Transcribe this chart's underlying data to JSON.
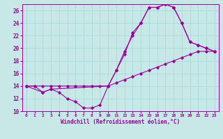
{
  "xlabel": "Windchill (Refroidissement éolien,°C)",
  "background_color": "#c8e8e8",
  "grid_color": "#a8d8d8",
  "line_color": "#990099",
  "xlim": [
    -0.5,
    23.5
  ],
  "ylim": [
    10,
    27
  ],
  "xticks": [
    0,
    1,
    2,
    3,
    4,
    5,
    6,
    7,
    8,
    9,
    10,
    11,
    12,
    13,
    14,
    15,
    16,
    17,
    18,
    19,
    20,
    21,
    22,
    23
  ],
  "yticks": [
    10,
    12,
    14,
    16,
    18,
    20,
    22,
    24,
    26
  ],
  "series": [
    {
      "x": [
        0,
        1,
        2,
        3,
        4,
        5,
        6,
        7,
        8,
        9,
        10,
        11,
        12,
        13,
        14,
        15,
        16,
        17,
        18,
        19,
        20,
        21,
        22,
        23
      ],
      "y": [
        14,
        14,
        13,
        13.5,
        13,
        12,
        11.5,
        10.5,
        10.5,
        11,
        14,
        16.5,
        19,
        22.5,
        24,
        26.5,
        26.5,
        27,
        26.5,
        24,
        21,
        20.5,
        20,
        19.5
      ]
    },
    {
      "x": [
        0,
        1,
        2,
        3,
        4,
        5,
        6,
        7,
        8,
        9,
        10,
        11,
        12,
        13,
        14,
        15,
        16,
        17,
        18,
        19,
        20,
        21,
        22,
        23
      ],
      "y": [
        14,
        14,
        14,
        14,
        14,
        14,
        14,
        14,
        14,
        14,
        14,
        14.5,
        15,
        15.5,
        16,
        16.5,
        17,
        17.5,
        18,
        18.5,
        19,
        19.5,
        19.5,
        19.5
      ]
    },
    {
      "x": [
        0,
        2,
        3,
        10,
        11,
        12,
        13,
        14,
        15,
        16,
        17,
        18,
        19,
        20,
        21,
        22,
        23
      ],
      "y": [
        14,
        13,
        13.5,
        14,
        16.5,
        19.5,
        22,
        24,
        26.5,
        26.5,
        27,
        26.5,
        24,
        21,
        20.5,
        20,
        19.5
      ]
    }
  ]
}
